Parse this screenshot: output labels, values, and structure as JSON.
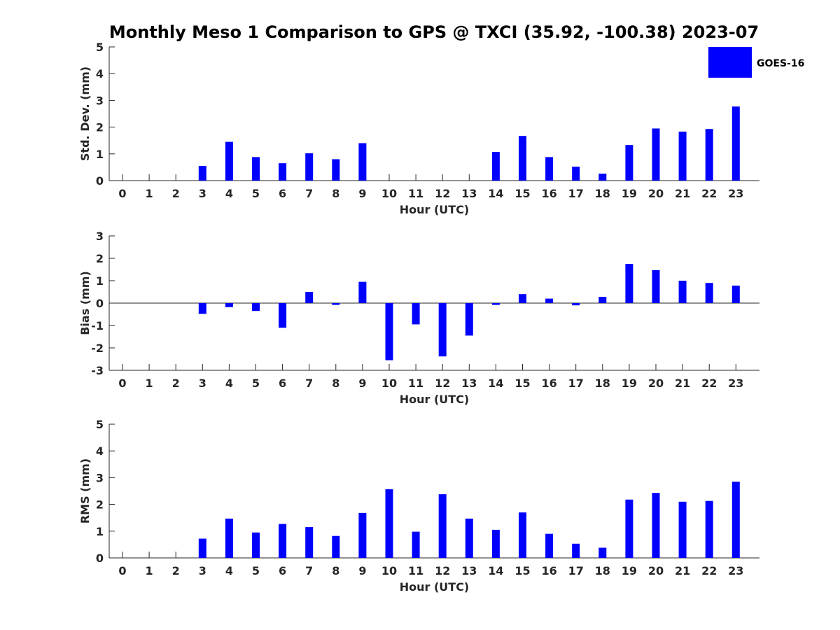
{
  "chart_data": {
    "type": "bar",
    "title": "Monthly Meso 1 Comparison to GPS @ TXCI (35.92, -100.38) 2023-07",
    "legend": {
      "label": "GOES-16",
      "color": "#0000ff",
      "position": "top-right"
    },
    "bar_color": "#0000ff",
    "panels": [
      {
        "ylabel": "Std. Dev. (mm)",
        "xlabel": "Hour (UTC)",
        "ylim": [
          0,
          5
        ],
        "yticks": [
          "0",
          "1",
          "2",
          "3",
          "4",
          "5"
        ],
        "categories": [
          "0",
          "1",
          "2",
          "3",
          "4",
          "5",
          "6",
          "7",
          "8",
          "9",
          "10",
          "11",
          "12",
          "13",
          "14",
          "15",
          "16",
          "17",
          "18",
          "19",
          "20",
          "21",
          "22",
          "23"
        ],
        "values": [
          0,
          0,
          0,
          0.55,
          1.45,
          0.88,
          0.65,
          1.02,
          0.8,
          1.4,
          0,
          0,
          0,
          0,
          1.07,
          1.67,
          0.88,
          0.52,
          0.26,
          1.33,
          1.95,
          1.83,
          1.93,
          2.77
        ]
      },
      {
        "ylabel": "Bias (mm)",
        "xlabel": "Hour (UTC)",
        "ylim": [
          -3,
          3
        ],
        "yticks": [
          "-3",
          "-2",
          "-1",
          "0",
          "1",
          "2",
          "3"
        ],
        "categories": [
          "0",
          "1",
          "2",
          "3",
          "4",
          "5",
          "6",
          "7",
          "8",
          "9",
          "10",
          "11",
          "12",
          "13",
          "14",
          "15",
          "16",
          "17",
          "18",
          "19",
          "20",
          "21",
          "22",
          "23"
        ],
        "values": [
          0,
          0,
          0,
          -0.48,
          -0.18,
          -0.35,
          -1.1,
          0.5,
          -0.08,
          0.95,
          -2.55,
          -0.95,
          -2.38,
          -1.45,
          -0.08,
          0.4,
          0.2,
          -0.1,
          0.28,
          1.75,
          1.47,
          1.0,
          0.9,
          0.78
        ]
      },
      {
        "ylabel": "RMS (mm)",
        "xlabel": "Hour (UTC)",
        "ylim": [
          0,
          5
        ],
        "yticks": [
          "0",
          "1",
          "2",
          "3",
          "4",
          "5"
        ],
        "categories": [
          "0",
          "1",
          "2",
          "3",
          "4",
          "5",
          "6",
          "7",
          "8",
          "9",
          "10",
          "11",
          "12",
          "13",
          "14",
          "15",
          "16",
          "17",
          "18",
          "19",
          "20",
          "21",
          "22",
          "23"
        ],
        "values": [
          0,
          0,
          0,
          0.72,
          1.47,
          0.95,
          1.27,
          1.15,
          0.82,
          1.68,
          2.57,
          0.98,
          2.38,
          1.47,
          1.05,
          1.7,
          0.9,
          0.53,
          0.38,
          2.18,
          2.43,
          2.1,
          2.13,
          2.85
        ]
      }
    ]
  }
}
